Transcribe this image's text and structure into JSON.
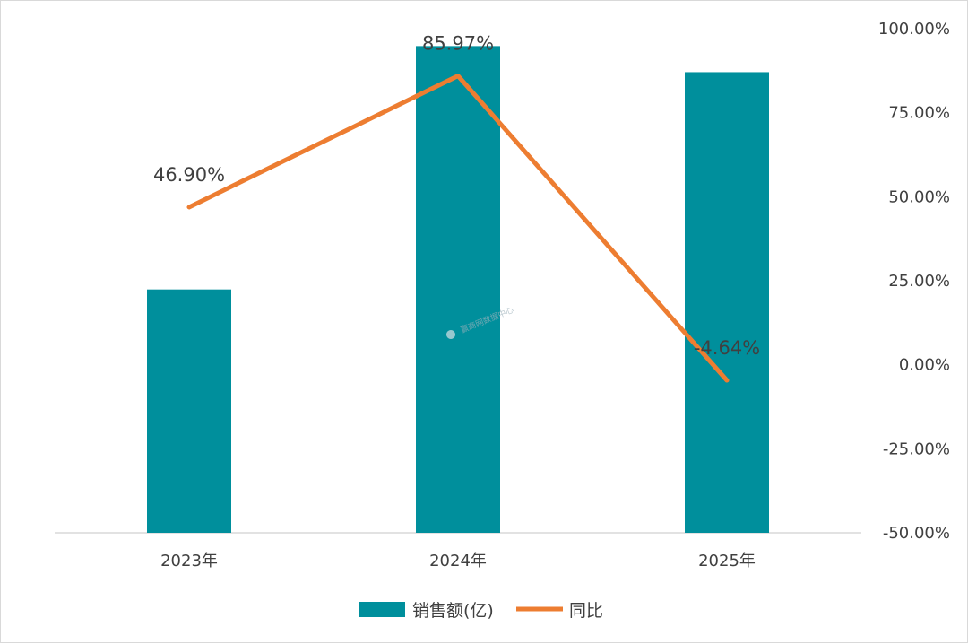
{
  "chart_data": {
    "type": "bar+line",
    "categories": [
      "2023年",
      "2024年",
      "2025年"
    ],
    "series": [
      {
        "name": "销售额(亿)",
        "type": "bar",
        "axis": "left",
        "values": [
          28,
          56,
          53
        ],
        "color": "#008f9c"
      },
      {
        "name": "同比",
        "type": "line",
        "axis": "right",
        "values": [
          46.9,
          85.97,
          -4.64
        ],
        "labels": [
          "46.90%",
          "85.97%",
          "-4.64%"
        ],
        "color": "#ed7d31"
      }
    ],
    "left_axis": {
      "range": [
        0,
        58
      ],
      "visible": false
    },
    "right_axis": {
      "range": [
        -50,
        100
      ],
      "ticks": [
        100,
        75,
        50,
        25,
        0,
        -25,
        -50
      ],
      "tick_labels": [
        "100.00%",
        "75.00%",
        "50.00%",
        "25.00%",
        "0.00%",
        "-25.00%",
        "-50.00%"
      ]
    },
    "legend": {
      "position": "bottom"
    },
    "grid": false
  },
  "watermark": {
    "text": "赢商网数据中心"
  }
}
